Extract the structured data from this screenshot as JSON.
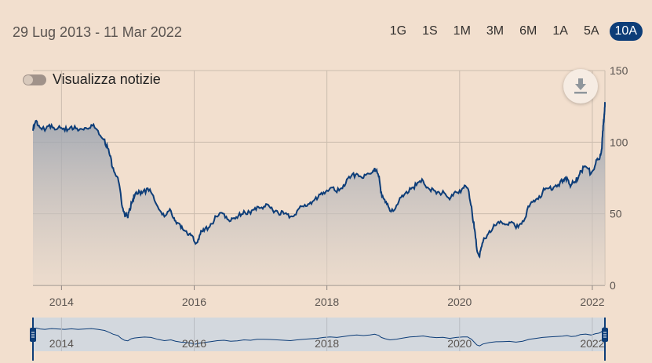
{
  "header": {
    "date_range": "29 Lug 2013 - 11 Mar 2022",
    "periods": [
      "1G",
      "1S",
      "1M",
      "3M",
      "6M",
      "1A",
      "5A",
      "10A"
    ],
    "active_period": "10A"
  },
  "news_toggle": {
    "label": "Visualizza notizie",
    "on": false
  },
  "download": {
    "icon": "download-icon"
  },
  "colors": {
    "line": "#0d3d78",
    "active": "#0d3d78",
    "background": "#f2dfce"
  },
  "chart_data": {
    "type": "area",
    "title": "",
    "xlabel": "",
    "ylabel": "",
    "ylim": [
      0,
      150
    ],
    "xlim": [
      2013.57,
      2022.19
    ],
    "y_ticks": [
      "0",
      "50",
      "100",
      "150"
    ],
    "x_ticks": [
      "2014",
      "2016",
      "2018",
      "2020",
      "2022"
    ],
    "grid": true,
    "legend": "none",
    "series": [
      {
        "x": [
          2013.57,
          2013.62,
          2013.68,
          2013.75,
          2013.85,
          2013.95,
          2014.05,
          2014.15,
          2014.25,
          2014.35,
          2014.45,
          2014.55,
          2014.65,
          2014.72,
          2014.78,
          2014.85,
          2014.9,
          2014.95,
          2015.0,
          2015.05,
          2015.1,
          2015.18,
          2015.25,
          2015.35,
          2015.45,
          2015.55,
          2015.65,
          2015.72,
          2015.8,
          2015.88,
          2015.95,
          2016.02,
          2016.08,
          2016.15,
          2016.25,
          2016.35,
          2016.45,
          2016.55,
          2016.65,
          2016.75,
          2016.85,
          2016.95,
          2017.05,
          2017.15,
          2017.25,
          2017.35,
          2017.45,
          2017.55,
          2017.65,
          2017.75,
          2017.85,
          2017.95,
          2018.05,
          2018.15,
          2018.25,
          2018.35,
          2018.45,
          2018.55,
          2018.65,
          2018.72,
          2018.78,
          2018.82,
          2018.88,
          2018.95,
          2019.05,
          2019.15,
          2019.25,
          2019.35,
          2019.45,
          2019.55,
          2019.65,
          2019.75,
          2019.85,
          2019.95,
          2020.05,
          2020.12,
          2020.18,
          2020.22,
          2020.26,
          2020.3,
          2020.35,
          2020.45,
          2020.55,
          2020.65,
          2020.75,
          2020.85,
          2020.95,
          2021.05,
          2021.15,
          2021.25,
          2021.35,
          2021.45,
          2021.55,
          2021.62,
          2021.68,
          2021.75,
          2021.82,
          2021.9,
          2021.98,
          2022.05,
          2022.1,
          2022.14,
          2022.16,
          2022.18,
          2022.19
        ],
        "y": [
          108,
          115,
          110,
          108,
          112,
          110,
          108,
          111,
          108,
          110,
          112,
          108,
          102,
          92,
          82,
          75,
          60,
          50,
          47,
          58,
          62,
          65,
          67,
          65,
          55,
          48,
          52,
          45,
          40,
          38,
          35,
          29,
          35,
          38,
          43,
          48,
          50,
          45,
          47,
          52,
          50,
          55,
          55,
          54,
          52,
          50,
          48,
          52,
          55,
          58,
          60,
          65,
          68,
          65,
          70,
          75,
          78,
          75,
          78,
          82,
          76,
          65,
          58,
          52,
          56,
          62,
          68,
          70,
          73,
          67,
          64,
          66,
          60,
          65,
          68,
          68,
          55,
          40,
          25,
          20,
          30,
          38,
          42,
          43,
          44,
          40,
          45,
          55,
          60,
          65,
          68,
          70,
          72,
          75,
          70,
          72,
          80,
          83,
          78,
          85,
          88,
          95,
          108,
          120,
          128
        ]
      }
    ],
    "navigator_ticks": [
      "2014",
      "2016",
      "2018",
      "2020",
      "2022"
    ]
  }
}
